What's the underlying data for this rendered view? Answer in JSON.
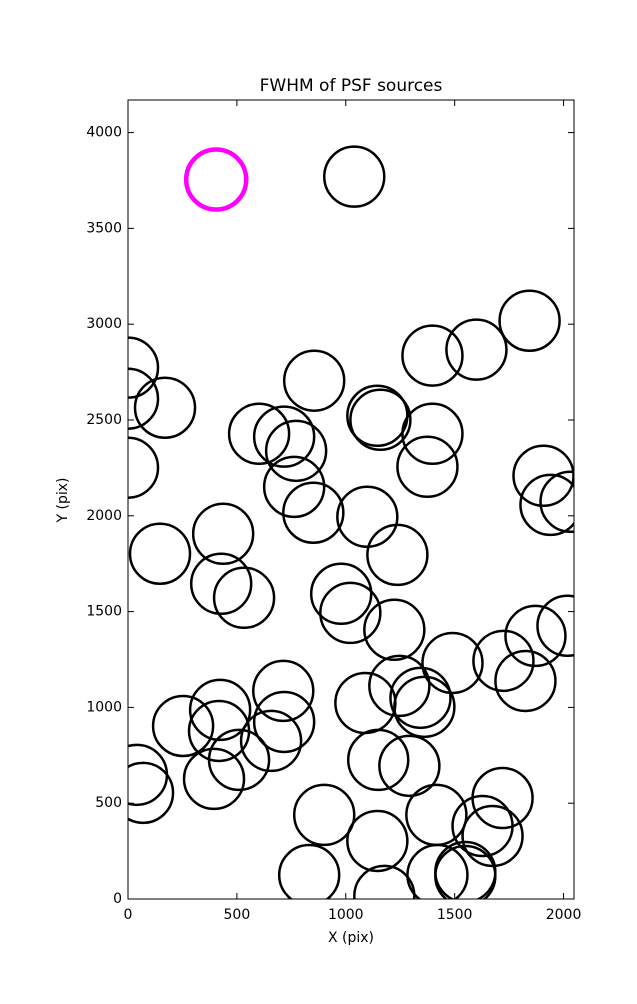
{
  "chart_data": {
    "type": "scatter",
    "title": "FWHM of PSF sources",
    "x_label": "X (pix)",
    "y_label": "Y (pix)",
    "xlim": [
      0,
      2048
    ],
    "ylim": [
      0,
      4170
    ],
    "xticks": [
      0,
      500,
      1000,
      1500,
      2000
    ],
    "yticks": [
      0,
      500,
      1000,
      1500,
      2000,
      2500,
      3000,
      3500,
      4000
    ],
    "grid": false,
    "series": [
      {
        "color": "#000000",
        "x": [
          1039,
          1844,
          1398,
          1600,
          855,
          0,
          0,
          170,
          602,
          717,
          772,
          1145,
          1159,
          1398,
          1375,
          0,
          763,
          851,
          1099,
          1908,
          1940,
          2032,
          437,
          147,
          1237,
          428,
          533,
          979,
          1021,
          1223,
          1871,
          2018,
          1490,
          1724,
          1825,
          713,
          1246,
          1343,
          1361,
          1090,
          423,
          418,
          253,
          717,
          657,
          510,
          1149,
          1292,
          41,
          69,
          395,
          1720,
          901,
          1416,
          1628,
          1674,
          1145,
          832,
          1421,
          1549,
          1549,
          1177
        ],
        "values": [
          3770,
          3018,
          2836,
          2867,
          2705,
          2773,
          2611,
          2564,
          2428,
          2413,
          2339,
          2522,
          2501,
          2428,
          2256,
          2251,
          2151,
          2016,
          1995,
          2209,
          2057,
          2073,
          1906,
          1802,
          1796,
          1645,
          1572,
          1593,
          1493,
          1405,
          1373,
          1426,
          1232,
          1243,
          1138,
          1086,
          1112,
          1050,
          1003,
          1023,
          987,
          877,
          903,
          924,
          825,
          726,
          726,
          695,
          648,
          554,
          627,
          527,
          439,
          439,
          381,
          329,
          303,
          125,
          125,
          120,
          141,
          16
        ]
      },
      {
        "color": "#ff00ff",
        "x": [
          405
        ],
        "values": [
          3755
        ]
      }
    ]
  }
}
